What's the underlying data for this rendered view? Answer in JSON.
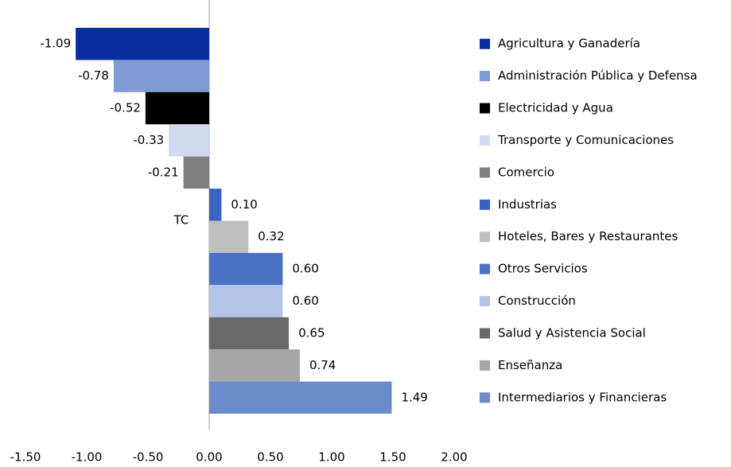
{
  "chart_data": {
    "type": "barh",
    "categories": [
      "Agricultura y Ganadería",
      "Administración Pública y Defensa",
      "Electricidad y Agua",
      "Transporte y Comunicaciones",
      "Comercio",
      "Industrias",
      "Hoteles, Bares y Restaurantes",
      "Otros Servicios",
      "Construcción",
      "Salud y Asistencia Social",
      "Enseñanza",
      "Intermediarios y Financieras"
    ],
    "values": [
      -1.09,
      -0.78,
      -0.52,
      -0.33,
      -0.21,
      0.1,
      0.32,
      0.6,
      0.6,
      0.65,
      0.74,
      1.49
    ],
    "value_labels": [
      "-1.09",
      "-0.78",
      "-0.52",
      "-0.33",
      "-0.21",
      "0.10",
      "0.32",
      "0.60",
      "0.60",
      "0.65",
      "0.74",
      "1.49"
    ],
    "colors": [
      "#0a2da0",
      "#7f9bd3",
      "#000000",
      "#cfd9ef",
      "#7f7f7f",
      "#3a62c2",
      "#bfbfbf",
      "#4a72c4",
      "#b4c4e6",
      "#696969",
      "#a6a6a6",
      "#6b8ccb"
    ],
    "annotation": "TC",
    "xlim": [
      -1.5,
      2.0
    ],
    "xticks": [
      {
        "value": -1.5,
        "label": "-1.50"
      },
      {
        "value": -1.0,
        "label": "-1.00"
      },
      {
        "value": -0.5,
        "label": "-0.50"
      },
      {
        "value": 0,
        "label": "0.00"
      },
      {
        "value": 0.5,
        "label": "0.50"
      },
      {
        "value": 1.0,
        "label": "1.00"
      },
      {
        "value": 1.5,
        "label": "1.50"
      },
      {
        "value": 2.0,
        "label": "2.00"
      }
    ],
    "legend": "right"
  }
}
